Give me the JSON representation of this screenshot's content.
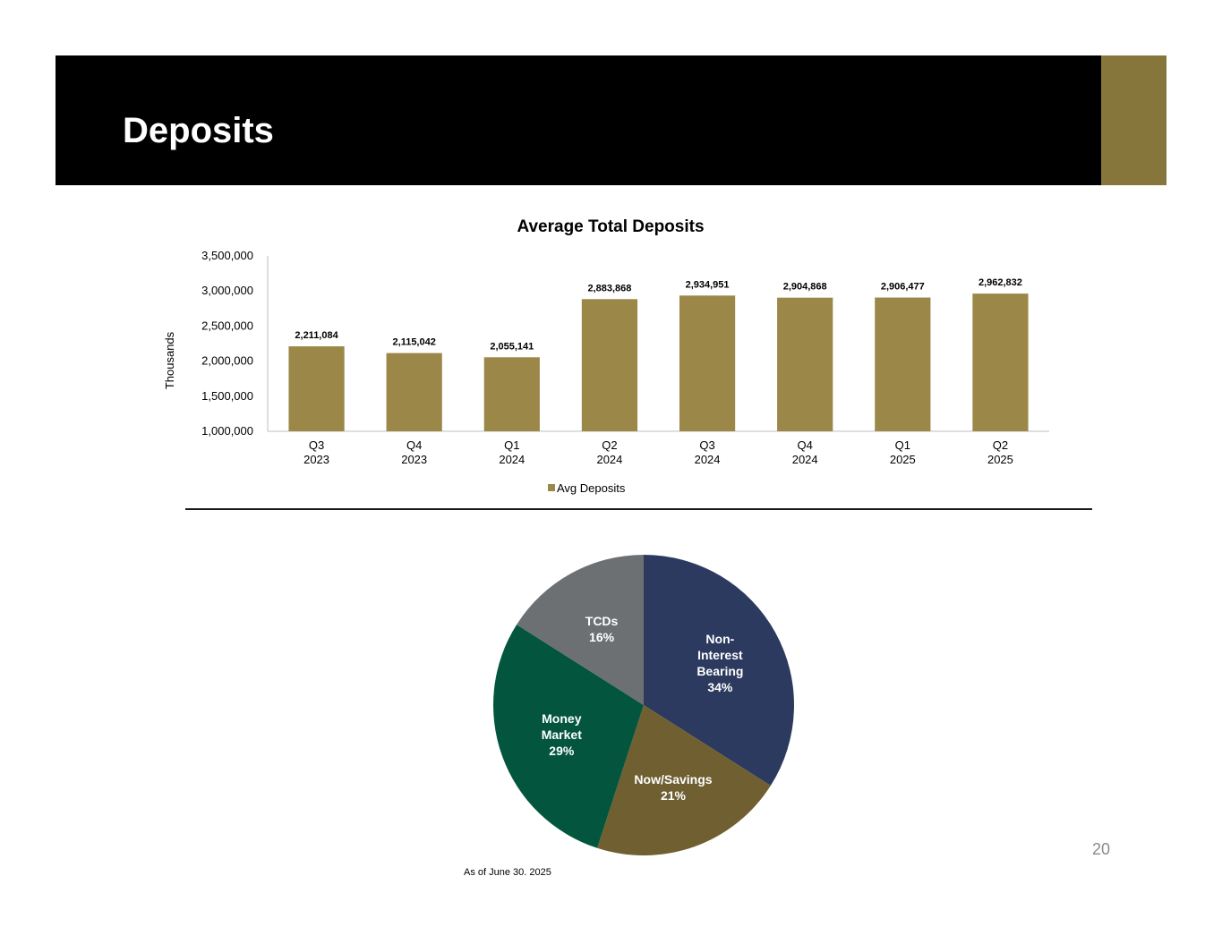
{
  "slide": {
    "title": "Deposits",
    "page_number": "20",
    "footnote": "As of June 30. 2025",
    "accent_color": "#86763c"
  },
  "chart_data": [
    {
      "type": "bar",
      "title": "Average Total Deposits",
      "ylabel": "Thousands",
      "xlabel": "",
      "ylim": [
        1000000,
        3500000
      ],
      "yticks": [
        "1,000,000",
        "1,500,000",
        "2,000,000",
        "2,500,000",
        "3,000,000",
        "3,500,000"
      ],
      "ytick_values": [
        1000000,
        1500000,
        2000000,
        2500000,
        3000000,
        3500000
      ],
      "categories": [
        {
          "line1": "Q3",
          "line2": "2023"
        },
        {
          "line1": "Q4",
          "line2": "2023"
        },
        {
          "line1": "Q1",
          "line2": "2024"
        },
        {
          "line1": "Q2",
          "line2": "2024"
        },
        {
          "line1": "Q3",
          "line2": "2024"
        },
        {
          "line1": "Q4",
          "line2": "2024"
        },
        {
          "line1": "Q1",
          "line2": "2025"
        },
        {
          "line1": "Q2",
          "line2": "2025"
        }
      ],
      "series": [
        {
          "name": "Avg Deposits",
          "color": "#9b8748",
          "values": [
            2211084,
            2115042,
            2055141,
            2883868,
            2934951,
            2904868,
            2906477,
            2962832
          ],
          "labels": [
            "2,211,084",
            "2,115,042",
            "2,055,141",
            "2,883,868",
            "2,934,951",
            "2,904,868",
            "2,906,477",
            "2,962,832"
          ]
        }
      ],
      "legend": "bottom",
      "grid": false
    },
    {
      "type": "pie",
      "title": "",
      "slices": [
        {
          "name": "Non-Interest Bearing",
          "lines": [
            "Non-",
            "Interest",
            "Bearing",
            "34%"
          ],
          "value": 34,
          "color": "#2b3a5e"
        },
        {
          "name": "Now/Savings",
          "lines": [
            "Now/Savings",
            "21%"
          ],
          "value": 21,
          "color": "#6f5f31"
        },
        {
          "name": "Money Market",
          "lines": [
            "Money",
            "Market",
            "29%"
          ],
          "value": 29,
          "color": "#03563d"
        },
        {
          "name": "TCDs",
          "lines": [
            "TCDs",
            "16%"
          ],
          "value": 16,
          "color": "#6d7073"
        }
      ]
    }
  ]
}
